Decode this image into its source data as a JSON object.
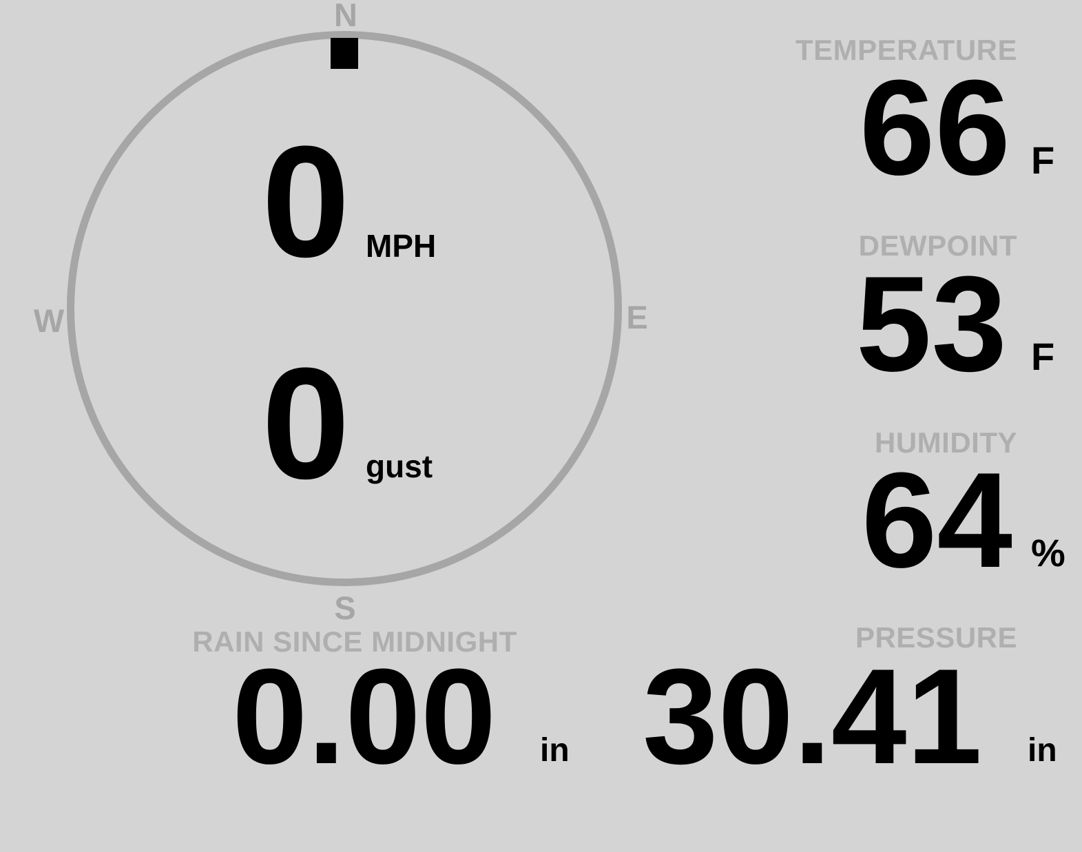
{
  "colors": {
    "background": "#d4d4d4",
    "ring": "#a6a6a6",
    "compass_letter": "#a6a6a6",
    "label": "#afafaf",
    "value": "#000000"
  },
  "wind": {
    "compass_points": {
      "north": "N",
      "east": "E",
      "south": "S",
      "west": "W"
    },
    "direction": "N",
    "speed": {
      "value": "0",
      "unit": "MPH"
    },
    "gust": {
      "value": "0",
      "unit": "gust"
    }
  },
  "metrics": {
    "temperature": {
      "label": "TEMPERATURE",
      "value": "66",
      "unit": "F"
    },
    "dewpoint": {
      "label": "DEWPOINT",
      "value": "53",
      "unit": "F"
    },
    "humidity": {
      "label": "HUMIDITY",
      "value": "64",
      "unit": "%"
    },
    "rain": {
      "label": "RAIN SINCE MIDNIGHT",
      "value": "0.00",
      "unit": "in"
    },
    "pressure": {
      "label": "PRESSURE",
      "value": "30.41",
      "unit": "in"
    }
  }
}
